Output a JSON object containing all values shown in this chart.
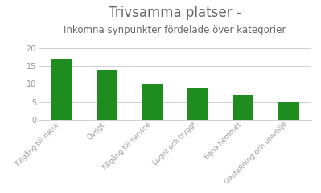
{
  "title_line1": "Trivsamma platser -",
  "title_line2": "Inkomna synpunkter fördelade över kategorier",
  "categories": [
    "Tillgång till natur",
    "Övrigt",
    "Tillgång till service",
    "Lugnt och tryggt",
    "Egna hemmet",
    "Gestaltning och utemiljö"
  ],
  "values": [
    17,
    14,
    10,
    9,
    7,
    5
  ],
  "bar_color": "#1e8c1e",
  "ylim": [
    0,
    20
  ],
  "yticks": [
    0,
    5,
    10,
    15,
    20
  ],
  "background_color": "#ffffff",
  "title_color": "#666666",
  "subtitle_color": "#666666",
  "tick_label_color": "#999999",
  "grid_color": "#d0d0d0",
  "title_fontsize": 12,
  "subtitle_fontsize": 8.5,
  "bar_width": 0.45
}
